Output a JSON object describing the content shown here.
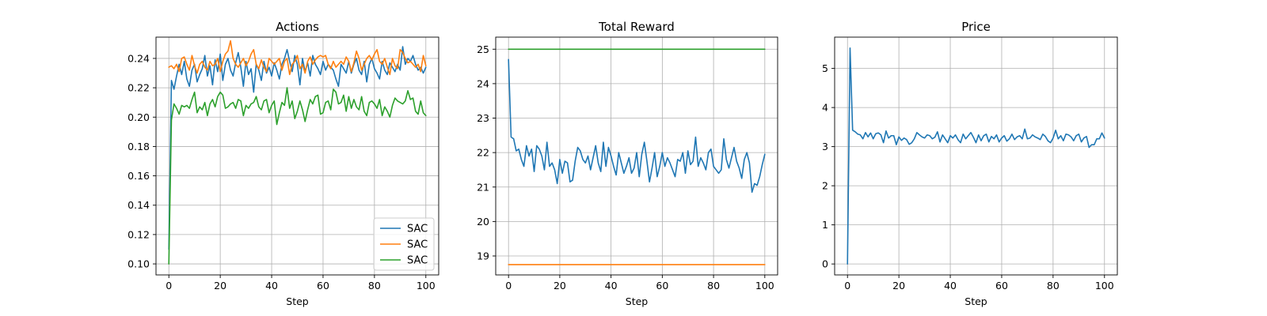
{
  "chart_data": [
    {
      "type": "line",
      "title": "Actions",
      "xlabel": "Step",
      "ylabel": "",
      "xlim": [
        -5,
        105
      ],
      "ylim": [
        0.0925,
        0.2545
      ],
      "xticks": [
        0,
        20,
        40,
        60,
        80,
        100
      ],
      "yticks": [
        0.1,
        0.12,
        0.14,
        0.16,
        0.18,
        0.2,
        0.22,
        0.24
      ],
      "ytick_labels": [
        "0.10",
        "0.12",
        "0.14",
        "0.16",
        "0.18",
        "0.20",
        "0.22",
        "0.24"
      ],
      "grid": true,
      "legend": "bottom-right",
      "series": [
        {
          "name": "SAC",
          "color": "#1f77b4",
          "values": [
            0.11,
            0.225,
            0.219,
            0.228,
            0.236,
            0.229,
            0.238,
            0.226,
            0.221,
            0.232,
            0.236,
            0.224,
            0.229,
            0.233,
            0.242,
            0.228,
            0.235,
            0.222,
            0.239,
            0.231,
            0.243,
            0.225,
            0.236,
            0.24,
            0.232,
            0.228,
            0.237,
            0.244,
            0.234,
            0.221,
            0.238,
            0.229,
            0.233,
            0.217,
            0.236,
            0.232,
            0.225,
            0.238,
            0.23,
            0.234,
            0.228,
            0.237,
            0.232,
            0.226,
            0.236,
            0.24,
            0.246,
            0.238,
            0.231,
            0.242,
            0.236,
            0.222,
            0.24,
            0.231,
            0.237,
            0.228,
            0.242,
            0.236,
            0.233,
            0.229,
            0.238,
            0.232,
            0.236,
            0.234,
            0.232,
            0.226,
            0.221,
            0.236,
            0.233,
            0.23,
            0.238,
            0.23,
            0.236,
            0.24,
            0.232,
            0.229,
            0.238,
            0.224,
            0.236,
            0.24,
            0.233,
            0.23,
            0.226,
            0.238,
            0.232,
            0.229,
            0.237,
            0.234,
            0.231,
            0.236,
            0.232,
            0.248,
            0.236,
            0.24,
            0.238,
            0.242,
            0.236,
            0.232,
            0.234,
            0.23,
            0.234
          ],
          "x": null
        },
        {
          "name": "SAC",
          "color": "#ff7f0e",
          "values": [
            0.234,
            0.235,
            0.233,
            0.236,
            0.231,
            0.24,
            0.241,
            0.236,
            0.232,
            0.242,
            0.235,
            0.23,
            0.236,
            0.238,
            0.234,
            0.232,
            0.238,
            0.235,
            0.236,
            0.24,
            0.231,
            0.238,
            0.243,
            0.245,
            0.252,
            0.24,
            0.236,
            0.234,
            0.237,
            0.24,
            0.235,
            0.238,
            0.243,
            0.246,
            0.236,
            0.233,
            0.239,
            0.234,
            0.231,
            0.24,
            0.238,
            0.236,
            0.238,
            0.24,
            0.232,
            0.238,
            0.24,
            0.229,
            0.236,
            0.238,
            0.242,
            0.233,
            0.236,
            0.23,
            0.238,
            0.241,
            0.236,
            0.239,
            0.241,
            0.242,
            0.241,
            0.242,
            0.236,
            0.233,
            0.238,
            0.234,
            0.236,
            0.238,
            0.236,
            0.241,
            0.238,
            0.231,
            0.237,
            0.245,
            0.24,
            0.232,
            0.236,
            0.24,
            0.242,
            0.239,
            0.243,
            0.246,
            0.238,
            0.236,
            0.24,
            0.234,
            0.229,
            0.24,
            0.235,
            0.233,
            0.246,
            0.244,
            0.24,
            0.237,
            0.238,
            0.236,
            0.234,
            0.236,
            0.231,
            0.242,
            0.235
          ],
          "x": null
        },
        {
          "name": "SAC",
          "color": "#2ca02c",
          "values": [
            0.1,
            0.198,
            0.209,
            0.206,
            0.202,
            0.208,
            0.207,
            0.208,
            0.206,
            0.212,
            0.217,
            0.203,
            0.207,
            0.205,
            0.21,
            0.201,
            0.209,
            0.212,
            0.207,
            0.214,
            0.217,
            0.215,
            0.206,
            0.207,
            0.209,
            0.21,
            0.206,
            0.212,
            0.211,
            0.201,
            0.208,
            0.206,
            0.209,
            0.21,
            0.214,
            0.207,
            0.205,
            0.211,
            0.212,
            0.203,
            0.208,
            0.211,
            0.195,
            0.203,
            0.21,
            0.208,
            0.22,
            0.206,
            0.211,
            0.199,
            0.204,
            0.211,
            0.205,
            0.197,
            0.205,
            0.212,
            0.209,
            0.214,
            0.215,
            0.202,
            0.203,
            0.21,
            0.211,
            0.205,
            0.219,
            0.217,
            0.209,
            0.21,
            0.215,
            0.204,
            0.214,
            0.206,
            0.212,
            0.207,
            0.205,
            0.214,
            0.204,
            0.201,
            0.21,
            0.211,
            0.209,
            0.206,
            0.212,
            0.201,
            0.207,
            0.204,
            0.2,
            0.208,
            0.213,
            0.211,
            0.21,
            0.209,
            0.211,
            0.218,
            0.212,
            0.213,
            0.204,
            0.202,
            0.211,
            0.203,
            0.201
          ],
          "x": null
        }
      ]
    },
    {
      "type": "line",
      "title": "Total Reward",
      "xlabel": "Step",
      "ylabel": "",
      "xlim": [
        -5,
        105
      ],
      "ylim": [
        18.45,
        25.35
      ],
      "xticks": [
        0,
        20,
        40,
        60,
        80,
        100
      ],
      "yticks": [
        19,
        20,
        21,
        22,
        23,
        24,
        25
      ],
      "ytick_labels": [
        "19",
        "20",
        "21",
        "22",
        "23",
        "24",
        "25"
      ],
      "grid": true,
      "legend": "",
      "series": [
        {
          "name": "",
          "color": "#1f77b4",
          "values": [
            24.7,
            22.45,
            22.4,
            22.05,
            22.1,
            21.8,
            21.6,
            22.2,
            21.9,
            22.1,
            21.45,
            22.2,
            22.1,
            21.9,
            21.5,
            22.3,
            21.6,
            21.7,
            21.5,
            21.1,
            21.8,
            21.4,
            21.75,
            21.7,
            21.15,
            21.2,
            21.75,
            22.15,
            22.05,
            21.8,
            21.7,
            21.9,
            21.5,
            21.85,
            22.2,
            21.7,
            21.45,
            22.3,
            21.6,
            22.15,
            21.9,
            21.6,
            21.35,
            22.0,
            21.7,
            21.4,
            21.6,
            21.85,
            21.4,
            21.55,
            22.0,
            21.3,
            21.95,
            22.3,
            21.75,
            21.15,
            21.55,
            22.0,
            21.3,
            21.6,
            22.0,
            21.6,
            21.85,
            21.7,
            21.5,
            21.3,
            21.8,
            21.75,
            22.0,
            21.4,
            22.05,
            21.65,
            21.75,
            22.45,
            21.6,
            21.85,
            21.7,
            21.5,
            22.0,
            22.1,
            21.6,
            21.5,
            21.4,
            21.5,
            22.4,
            21.8,
            21.55,
            21.85,
            22.15,
            21.75,
            21.55,
            21.25,
            21.8,
            22.0,
            21.7,
            20.85,
            21.1,
            21.05,
            21.3,
            21.65,
            21.95
          ],
          "x": null
        },
        {
          "name": "",
          "color": "#ff7f0e",
          "values": [
            18.75,
            18.75
          ],
          "x": [
            0,
            100
          ]
        },
        {
          "name": "",
          "color": "#2ca02c",
          "values": [
            25.0,
            25.0
          ],
          "x": [
            0,
            100
          ]
        }
      ]
    },
    {
      "type": "line",
      "title": "Price",
      "xlabel": "Step",
      "ylabel": "",
      "xlim": [
        -5,
        105
      ],
      "ylim": [
        -0.28,
        5.8
      ],
      "xticks": [
        0,
        20,
        40,
        60,
        80,
        100
      ],
      "yticks": [
        0,
        1,
        2,
        3,
        4,
        5
      ],
      "ytick_labels": [
        "0",
        "1",
        "2",
        "3",
        "4",
        "5"
      ],
      "grid": true,
      "legend": "",
      "series": [
        {
          "name": "",
          "color": "#1f77b4",
          "values": [
            0.0,
            5.52,
            3.42,
            3.38,
            3.32,
            3.3,
            3.2,
            3.36,
            3.25,
            3.35,
            3.2,
            3.33,
            3.35,
            3.3,
            3.1,
            3.4,
            3.22,
            3.28,
            3.28,
            3.05,
            3.25,
            3.16,
            3.22,
            3.18,
            3.06,
            3.1,
            3.2,
            3.36,
            3.3,
            3.25,
            3.22,
            3.3,
            3.28,
            3.2,
            3.24,
            3.38,
            3.12,
            3.3,
            3.2,
            3.1,
            3.28,
            3.22,
            3.3,
            3.18,
            3.1,
            3.32,
            3.2,
            3.28,
            3.36,
            3.24,
            3.1,
            3.3,
            3.15,
            3.28,
            3.32,
            3.12,
            3.26,
            3.2,
            3.3,
            3.12,
            3.22,
            3.28,
            3.14,
            3.2,
            3.32,
            3.18,
            3.25,
            3.28,
            3.2,
            3.45,
            3.2,
            3.22,
            3.3,
            3.25,
            3.22,
            3.18,
            3.32,
            3.26,
            3.15,
            3.1,
            3.22,
            3.42,
            3.2,
            3.28,
            3.15,
            3.32,
            3.3,
            3.25,
            3.15,
            3.28,
            3.32,
            3.12,
            3.22,
            3.26,
            2.98,
            3.05,
            3.05,
            3.2,
            3.2,
            3.35,
            3.22
          ],
          "x": null
        }
      ]
    }
  ]
}
